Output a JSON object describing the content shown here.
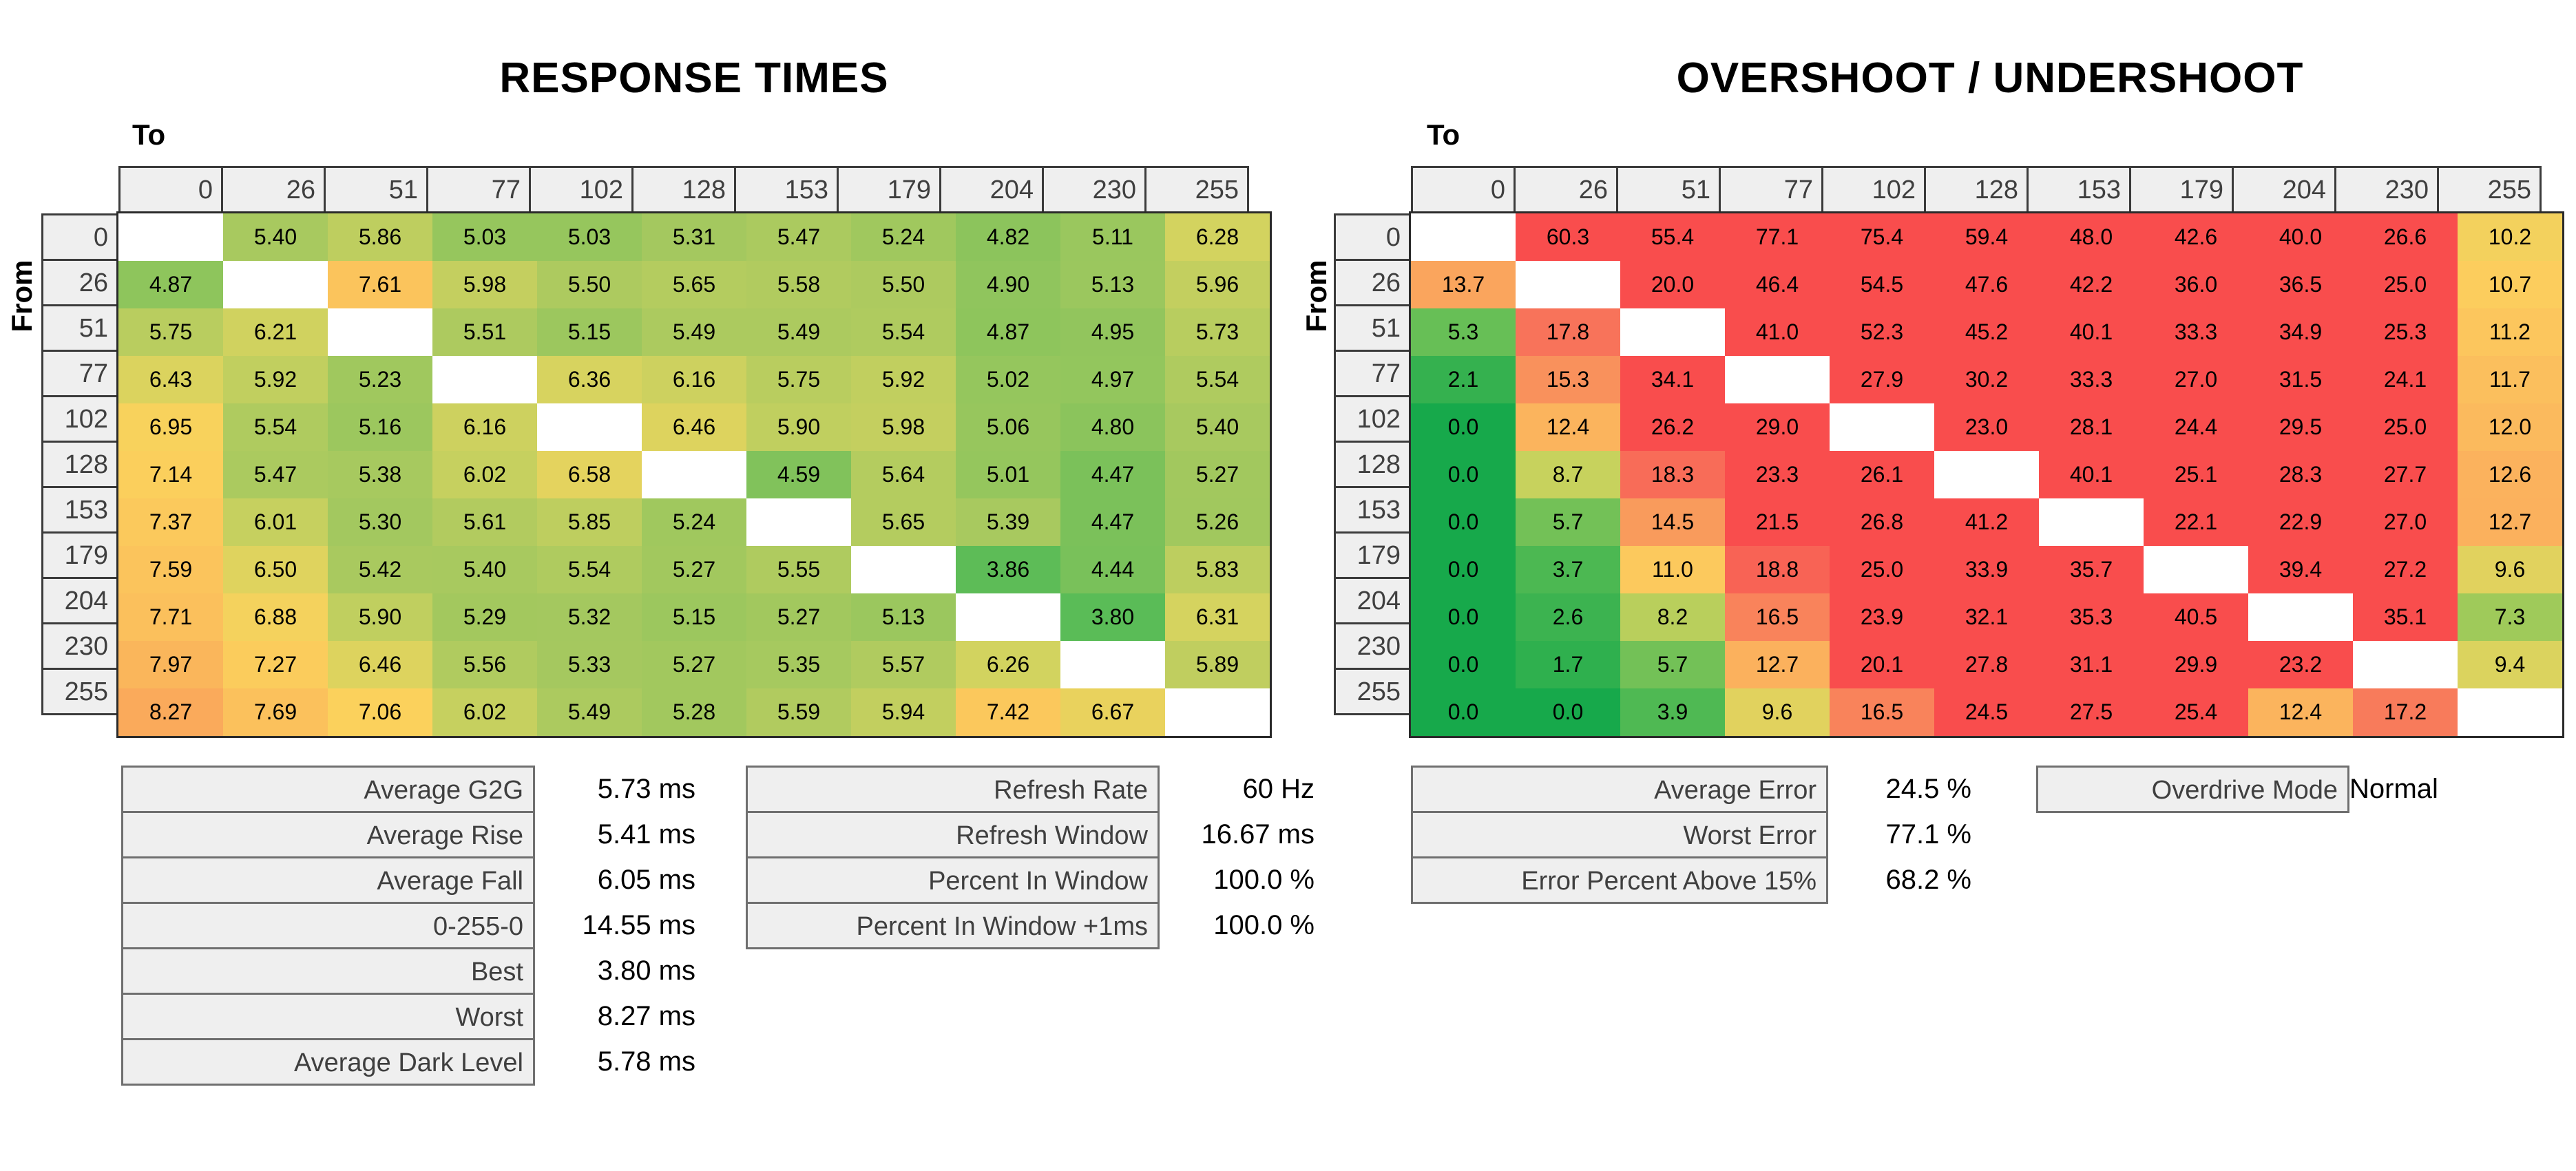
{
  "colors": {
    "background": "#ffffff",
    "header_fill": "#efefef",
    "header_border": "#3b3b3b",
    "stat_border": "#6f6f6f",
    "label_text": "#3f3f3f",
    "value_text": "#000000",
    "diagonal_fill": "#ffffff"
  },
  "panels": [
    {
      "title": "RESPONSE TIMES",
      "axis_to": "To",
      "axis_from": "From",
      "levels": [
        "0",
        "26",
        "51",
        "77",
        "102",
        "128",
        "153",
        "179",
        "204",
        "230",
        "255"
      ],
      "unit": "ms",
      "rows": [
        [
          null,
          "5.40",
          "5.86",
          "5.03",
          "5.03",
          "5.31",
          "5.47",
          "5.24",
          "4.82",
          "5.11",
          "6.28"
        ],
        [
          "4.87",
          null,
          "7.61",
          "5.98",
          "5.50",
          "5.65",
          "5.58",
          "5.50",
          "4.90",
          "5.13",
          "5.96"
        ],
        [
          "5.75",
          "6.21",
          null,
          "5.51",
          "5.15",
          "5.49",
          "5.49",
          "5.54",
          "4.87",
          "4.95",
          "5.73"
        ],
        [
          "6.43",
          "5.92",
          "5.23",
          null,
          "6.36",
          "6.16",
          "5.75",
          "5.92",
          "5.02",
          "4.97",
          "5.54"
        ],
        [
          "6.95",
          "5.54",
          "5.16",
          "6.16",
          null,
          "6.46",
          "5.90",
          "5.98",
          "5.06",
          "4.80",
          "5.40"
        ],
        [
          "7.14",
          "5.47",
          "5.38",
          "6.02",
          "6.58",
          null,
          "4.59",
          "5.64",
          "5.01",
          "4.47",
          "5.27"
        ],
        [
          "7.37",
          "6.01",
          "5.30",
          "5.61",
          "5.85",
          "5.24",
          null,
          "5.65",
          "5.39",
          "4.47",
          "5.26"
        ],
        [
          "7.59",
          "6.50",
          "5.42",
          "5.40",
          "5.54",
          "5.27",
          "5.55",
          null,
          "3.86",
          "4.44",
          "5.83"
        ],
        [
          "7.71",
          "6.88",
          "5.90",
          "5.29",
          "5.32",
          "5.15",
          "5.27",
          "5.13",
          null,
          "3.80",
          "6.31"
        ],
        [
          "7.97",
          "7.27",
          "6.46",
          "5.56",
          "5.33",
          "5.27",
          "5.35",
          "5.57",
          "6.26",
          null,
          "5.89"
        ],
        [
          "8.27",
          "7.69",
          "7.06",
          "6.02",
          "5.49",
          "5.28",
          "5.59",
          "5.94",
          "7.42",
          "6.67",
          null
        ]
      ],
      "color_scale": [
        {
          "v": 3.8,
          "c": "#5abc57"
        },
        {
          "v": 5.4,
          "c": "#a8c95f"
        },
        {
          "v": 6.3,
          "c": "#d4d35f"
        },
        {
          "v": 7.0,
          "c": "#fbd25c"
        },
        {
          "v": 7.6,
          "c": "#fbc45c"
        },
        {
          "v": 8.3,
          "c": "#faa95b"
        }
      ]
    },
    {
      "title": "OVERSHOOT / UNDERSHOOT",
      "axis_to": "To",
      "axis_from": "From",
      "levels": [
        "0",
        "26",
        "51",
        "77",
        "102",
        "128",
        "153",
        "179",
        "204",
        "230",
        "255"
      ],
      "unit": "%",
      "rows": [
        [
          null,
          "60.3",
          "55.4",
          "77.1",
          "75.4",
          "59.4",
          "48.0",
          "42.6",
          "40.0",
          "26.6",
          "10.2"
        ],
        [
          "13.7",
          null,
          "20.0",
          "46.4",
          "54.5",
          "47.6",
          "42.2",
          "36.0",
          "36.5",
          "25.0",
          "10.7"
        ],
        [
          "5.3",
          "17.8",
          null,
          "41.0",
          "52.3",
          "45.2",
          "40.1",
          "33.3",
          "34.9",
          "25.3",
          "11.2"
        ],
        [
          "2.1",
          "15.3",
          "34.1",
          null,
          "27.9",
          "30.2",
          "33.3",
          "27.0",
          "31.5",
          "24.1",
          "11.7"
        ],
        [
          "0.0",
          "12.4",
          "26.2",
          "29.0",
          null,
          "23.0",
          "28.1",
          "24.4",
          "29.5",
          "25.0",
          "12.0"
        ],
        [
          "0.0",
          "8.7",
          "18.3",
          "23.3",
          "26.1",
          null,
          "40.1",
          "25.1",
          "28.3",
          "27.7",
          "12.6"
        ],
        [
          "0.0",
          "5.7",
          "14.5",
          "21.5",
          "26.8",
          "41.2",
          null,
          "22.1",
          "22.9",
          "27.0",
          "12.7"
        ],
        [
          "0.0",
          "3.7",
          "11.0",
          "18.8",
          "25.0",
          "33.9",
          "35.7",
          null,
          "39.4",
          "27.2",
          "9.6"
        ],
        [
          "0.0",
          "2.6",
          "8.2",
          "16.5",
          "23.9",
          "32.1",
          "35.3",
          "40.5",
          null,
          "35.1",
          "7.3"
        ],
        [
          "0.0",
          "1.7",
          "5.7",
          "12.7",
          "20.1",
          "27.8",
          "31.1",
          "29.9",
          "23.2",
          null,
          "9.4"
        ],
        [
          "0.0",
          "0.0",
          "3.9",
          "9.6",
          "16.5",
          "24.5",
          "27.5",
          "25.4",
          "12.4",
          "17.2",
          null
        ]
      ],
      "color_scale": [
        {
          "v": 0,
          "c": "#17a94b"
        },
        {
          "v": 5,
          "c": "#5fbd55"
        },
        {
          "v": 9,
          "c": "#cfd45e"
        },
        {
          "v": 10.5,
          "c": "#fcd05d"
        },
        {
          "v": 12.5,
          "c": "#fbb35d"
        },
        {
          "v": 15,
          "c": "#f9955c"
        },
        {
          "v": 18,
          "c": "#f8715a"
        },
        {
          "v": 20,
          "c": "#f94d4d"
        }
      ]
    }
  ],
  "stats_blocks": [
    {
      "name": "response-summary",
      "rows": [
        {
          "label": "Average G2G",
          "value": "5.73 ms"
        },
        {
          "label": "Average Rise",
          "value": "5.41 ms"
        },
        {
          "label": "Average Fall",
          "value": "6.05 ms"
        },
        {
          "label": "0-255-0",
          "value": "14.55 ms"
        },
        {
          "label": "Best",
          "value": "3.80 ms"
        },
        {
          "label": "Worst",
          "value": "8.27 ms"
        },
        {
          "label": "Average Dark Level",
          "value": "5.78 ms"
        }
      ]
    },
    {
      "name": "refresh-summary",
      "rows": [
        {
          "label": "Refresh Rate",
          "value": "60 Hz"
        },
        {
          "label": "Refresh Window",
          "value": "16.67 ms"
        },
        {
          "label": "Percent In Window",
          "value": "100.0 %"
        },
        {
          "label": "Percent In Window +1ms",
          "value": "100.0 %"
        }
      ]
    },
    {
      "name": "error-summary",
      "rows": [
        {
          "label": "Average Error",
          "value": "24.5 %"
        },
        {
          "label": "Worst Error",
          "value": "77.1 %"
        },
        {
          "label": "Error Percent Above 15%",
          "value": "68.2 %"
        }
      ]
    },
    {
      "name": "overdrive-summary",
      "rows": [
        {
          "label": "Overdrive Mode",
          "value": "Normal"
        }
      ]
    }
  ]
}
